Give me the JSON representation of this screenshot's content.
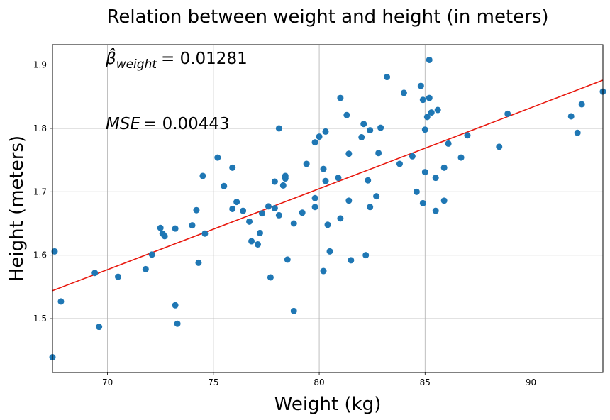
{
  "chart_data": {
    "type": "scatter",
    "title": "Relation between weight and height (in meters)",
    "xlabel": "Weight (kg)",
    "ylabel": "Height (meters)",
    "xlim": [
      67.4,
      93.4
    ],
    "ylim": [
      1.415,
      1.932
    ],
    "xticks": [
      70,
      75,
      80,
      85,
      90
    ],
    "yticks": [
      1.5,
      1.6,
      1.7,
      1.8,
      1.9
    ],
    "xtick_labels": [
      "70",
      "75",
      "80",
      "85",
      "90"
    ],
    "ytick_labels": [
      "1.5",
      "1.6",
      "1.7",
      "1.8",
      "1.9"
    ],
    "grid": true,
    "colors": {
      "points": "#1f77b4",
      "fit_line": "#e8180e"
    },
    "annotations": {
      "beta": {
        "symbol": "β̂",
        "subscript": "weight",
        "value": "= 0.01281"
      },
      "mse": {
        "symbol": "MSE",
        "value": "= 0.00443"
      }
    },
    "fit_line": {
      "x": [
        67.4,
        93.4
      ],
      "y": [
        1.544,
        1.876
      ]
    },
    "points": [
      [
        67.5,
        1.606
      ],
      [
        67.8,
        1.527
      ],
      [
        67.4,
        1.439
      ],
      [
        69.4,
        1.572
      ],
      [
        69.6,
        1.487
      ],
      [
        70.5,
        1.566
      ],
      [
        71.8,
        1.578
      ],
      [
        72.1,
        1.601
      ],
      [
        72.5,
        1.643
      ],
      [
        72.6,
        1.634
      ],
      [
        72.7,
        1.63
      ],
      [
        73.2,
        1.642
      ],
      [
        73.2,
        1.521
      ],
      [
        73.3,
        1.492
      ],
      [
        74.0,
        1.647
      ],
      [
        74.2,
        1.671
      ],
      [
        74.3,
        1.588
      ],
      [
        74.5,
        1.725
      ],
      [
        74.6,
        1.634
      ],
      [
        75.2,
        1.754
      ],
      [
        75.5,
        1.709
      ],
      [
        75.9,
        1.738
      ],
      [
        75.9,
        1.673
      ],
      [
        76.1,
        1.684
      ],
      [
        76.4,
        1.67
      ],
      [
        76.7,
        1.653
      ],
      [
        76.8,
        1.622
      ],
      [
        77.1,
        1.617
      ],
      [
        77.2,
        1.635
      ],
      [
        77.3,
        1.666
      ],
      [
        77.6,
        1.677
      ],
      [
        77.7,
        1.565
      ],
      [
        77.9,
        1.716
      ],
      [
        77.9,
        1.674
      ],
      [
        78.1,
        1.8
      ],
      [
        78.1,
        1.663
      ],
      [
        78.3,
        1.71
      ],
      [
        78.4,
        1.725
      ],
      [
        78.4,
        1.721
      ],
      [
        78.5,
        1.593
      ],
      [
        78.8,
        1.512
      ],
      [
        78.8,
        1.65
      ],
      [
        79.2,
        1.667
      ],
      [
        79.4,
        1.744
      ],
      [
        79.8,
        1.778
      ],
      [
        79.8,
        1.676
      ],
      [
        79.8,
        1.69
      ],
      [
        80.0,
        1.787
      ],
      [
        80.2,
        1.736
      ],
      [
        80.2,
        1.575
      ],
      [
        80.3,
        1.795
      ],
      [
        80.3,
        1.717
      ],
      [
        80.4,
        1.648
      ],
      [
        80.5,
        1.606
      ],
      [
        80.9,
        1.722
      ],
      [
        81.0,
        1.848
      ],
      [
        81.0,
        1.658
      ],
      [
        81.3,
        1.821
      ],
      [
        81.4,
        1.76
      ],
      [
        81.4,
        1.686
      ],
      [
        81.5,
        1.592
      ],
      [
        82.0,
        1.786
      ],
      [
        82.1,
        1.807
      ],
      [
        82.2,
        1.6
      ],
      [
        82.3,
        1.718
      ],
      [
        82.4,
        1.797
      ],
      [
        82.4,
        1.676
      ],
      [
        82.7,
        1.693
      ],
      [
        82.8,
        1.761
      ],
      [
        82.9,
        1.801
      ],
      [
        83.2,
        1.881
      ],
      [
        83.8,
        1.744
      ],
      [
        84.0,
        1.856
      ],
      [
        84.4,
        1.756
      ],
      [
        84.6,
        1.7
      ],
      [
        84.8,
        1.867
      ],
      [
        84.9,
        1.845
      ],
      [
        85.0,
        1.798
      ],
      [
        85.0,
        1.731
      ],
      [
        84.9,
        1.682
      ],
      [
        85.1,
        1.818
      ],
      [
        85.2,
        1.848
      ],
      [
        85.2,
        1.908
      ],
      [
        85.3,
        1.825
      ],
      [
        85.5,
        1.722
      ],
      [
        85.5,
        1.67
      ],
      [
        85.6,
        1.829
      ],
      [
        85.9,
        1.738
      ],
      [
        85.9,
        1.686
      ],
      [
        86.1,
        1.776
      ],
      [
        86.7,
        1.754
      ],
      [
        87.0,
        1.789
      ],
      [
        88.5,
        1.771
      ],
      [
        88.9,
        1.823
      ],
      [
        91.9,
        1.819
      ],
      [
        92.2,
        1.793
      ],
      [
        92.4,
        1.838
      ],
      [
        93.4,
        1.858
      ]
    ]
  }
}
